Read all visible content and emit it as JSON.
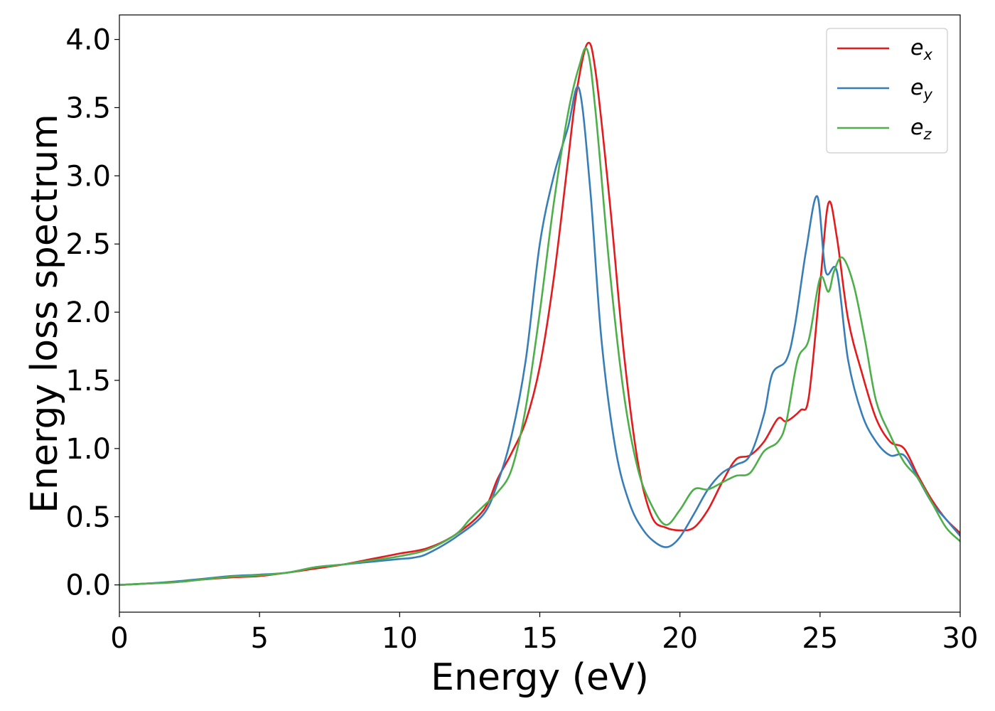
{
  "chart_data": {
    "type": "line",
    "title": "",
    "xlabel": "Energy (eV)",
    "ylabel": "Energy loss spectrum",
    "xlim": [
      0,
      30
    ],
    "ylim": [
      -0.2,
      4.18
    ],
    "xticks": [
      0,
      5,
      10,
      15,
      20,
      25,
      30
    ],
    "xtick_labels": [
      "0",
      "5",
      "10",
      "15",
      "20",
      "25",
      "30"
    ],
    "yticks": [
      0.0,
      0.5,
      1.0,
      1.5,
      2.0,
      2.5,
      3.0,
      3.5,
      4.0
    ],
    "ytick_labels": [
      "0.0",
      "0.5",
      "1.0",
      "1.5",
      "2.0",
      "2.5",
      "3.0",
      "3.5",
      "4.0"
    ],
    "grid": false,
    "legend_position": "top-right",
    "series": [
      {
        "name": "e_x",
        "label_main": "e",
        "label_sub": "x",
        "color": "#e41a1c",
        "x": [
          0,
          1,
          2,
          3,
          4,
          5,
          6,
          7,
          8,
          9,
          10,
          11,
          12,
          13,
          13.5,
          14,
          14.5,
          15,
          15.5,
          16,
          16.3,
          16.7,
          17,
          17.5,
          18,
          18.5,
          19,
          19.5,
          20,
          20.5,
          21,
          21.5,
          22,
          22.5,
          23,
          23.5,
          23.8,
          24.3,
          24.6,
          25,
          25.3,
          25.6,
          26,
          26.5,
          27,
          27.5,
          28,
          28.5,
          29,
          29.5,
          30
        ],
        "y": [
          0,
          0.01,
          0.02,
          0.04,
          0.055,
          0.065,
          0.09,
          0.12,
          0.15,
          0.19,
          0.23,
          0.27,
          0.37,
          0.55,
          0.78,
          0.97,
          1.2,
          1.6,
          2.25,
          3.1,
          3.6,
          3.97,
          3.75,
          2.8,
          1.7,
          0.9,
          0.5,
          0.42,
          0.4,
          0.42,
          0.55,
          0.75,
          0.92,
          0.95,
          1.05,
          1.22,
          1.2,
          1.28,
          1.38,
          2.2,
          2.8,
          2.55,
          1.95,
          1.55,
          1.22,
          1.05,
          1.0,
          0.8,
          0.62,
          0.48,
          0.38
        ]
      },
      {
        "name": "e_y",
        "label_main": "e",
        "label_sub": "y",
        "color": "#377eb8",
        "x": [
          0,
          1,
          2,
          3,
          4,
          5,
          6,
          7,
          8,
          9,
          10,
          10.5,
          11,
          12,
          13,
          13.5,
          14,
          14.5,
          15,
          15.5,
          16,
          16.4,
          16.8,
          17.2,
          17.7,
          18.2,
          18.7,
          19.2,
          19.6,
          20,
          20.5,
          21,
          21.5,
          22,
          22.5,
          23,
          23.3,
          23.8,
          24.1,
          24.5,
          24.9,
          25.2,
          25.6,
          26,
          26.5,
          27,
          27.5,
          28,
          28.5,
          29,
          29.5,
          30
        ],
        "y": [
          0,
          0.01,
          0.025,
          0.045,
          0.065,
          0.075,
          0.09,
          0.13,
          0.15,
          0.17,
          0.19,
          0.2,
          0.23,
          0.35,
          0.52,
          0.75,
          1.1,
          1.65,
          2.5,
          3.0,
          3.35,
          3.64,
          2.9,
          1.8,
          1.0,
          0.6,
          0.4,
          0.3,
          0.28,
          0.35,
          0.52,
          0.7,
          0.82,
          0.88,
          0.95,
          1.25,
          1.55,
          1.65,
          1.9,
          2.45,
          2.85,
          2.3,
          2.3,
          1.65,
          1.25,
          1.05,
          0.95,
          0.95,
          0.78,
          0.6,
          0.48,
          0.36
        ]
      },
      {
        "name": "e_z",
        "label_main": "e",
        "label_sub": "z",
        "color": "#4daf4a",
        "x": [
          0,
          1,
          2,
          3,
          4,
          5,
          6,
          7,
          7.5,
          8,
          9,
          10,
          11,
          12,
          12.5,
          13,
          13.5,
          14,
          14.5,
          15,
          15.5,
          16,
          16.4,
          16.7,
          17,
          17.5,
          18,
          18.5,
          19,
          19.5,
          20,
          20.5,
          21,
          21.5,
          22,
          22.5,
          23,
          23.5,
          23.8,
          24.2,
          24.6,
          25,
          25.3,
          25.5,
          25.8,
          26.2,
          26.6,
          27,
          27.5,
          28,
          28.5,
          29,
          29.5,
          30
        ],
        "y": [
          0,
          0.01,
          0.02,
          0.04,
          0.06,
          0.07,
          0.09,
          0.13,
          0.14,
          0.15,
          0.18,
          0.21,
          0.26,
          0.37,
          0.48,
          0.58,
          0.68,
          0.85,
          1.3,
          2.0,
          2.8,
          3.45,
          3.8,
          3.92,
          3.45,
          2.3,
          1.4,
          0.85,
          0.58,
          0.44,
          0.55,
          0.7,
          0.7,
          0.75,
          0.8,
          0.82,
          0.98,
          1.05,
          1.2,
          1.65,
          1.8,
          2.25,
          2.15,
          2.3,
          2.4,
          2.2,
          1.8,
          1.35,
          1.1,
          0.9,
          0.78,
          0.6,
          0.42,
          0.32
        ]
      }
    ]
  }
}
